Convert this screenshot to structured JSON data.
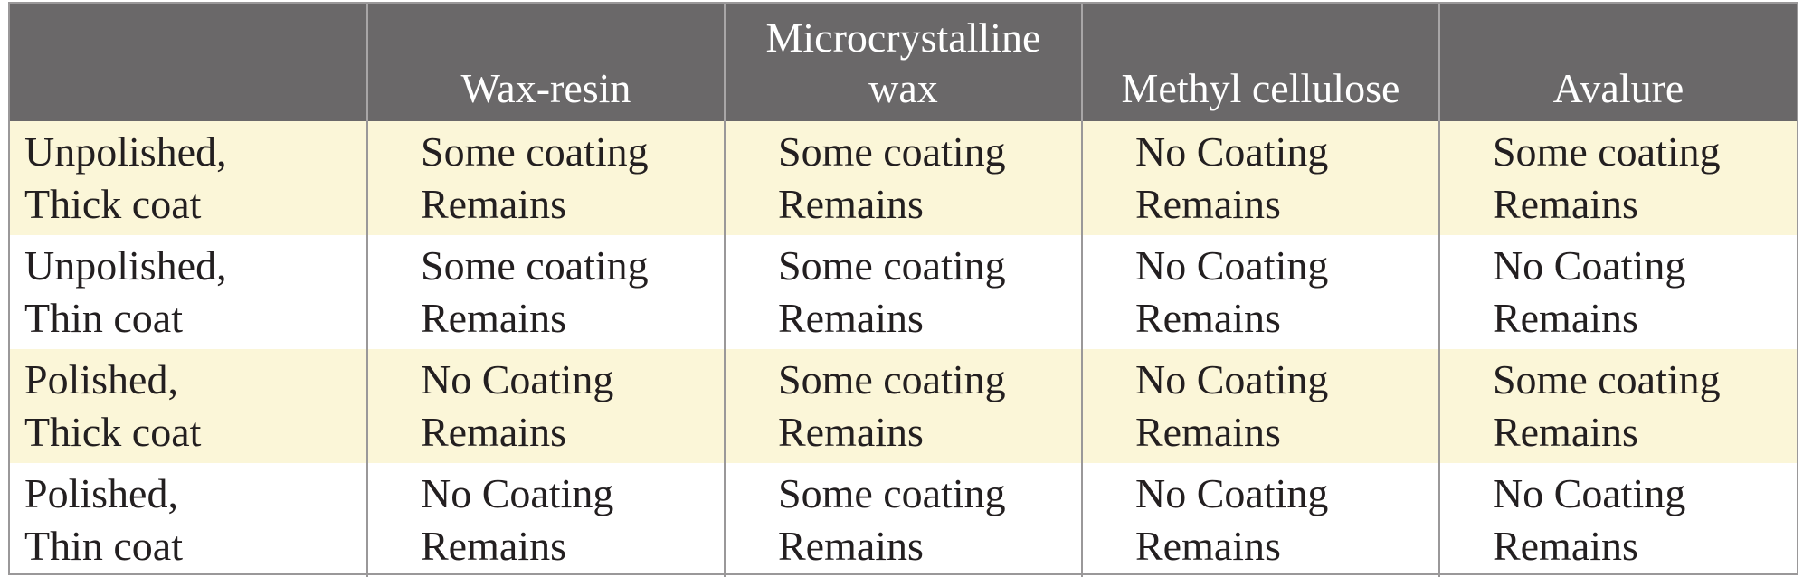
{
  "table": {
    "headers": [
      "",
      "Wax-resin",
      "Microcrystalline\nwax",
      "Methyl cellulose",
      "Avalure"
    ],
    "rows": [
      {
        "label": "Unpolished,\nThick coat",
        "cells": [
          "Some coating\nRemains",
          "Some coating\nRemains",
          "No Coating\nRemains",
          "Some coating\nRemains"
        ]
      },
      {
        "label": "Unpolished,\nThin coat",
        "cells": [
          "Some coating\nRemains",
          "Some coating\nRemains",
          "No Coating\nRemains",
          "No Coating\nRemains"
        ]
      },
      {
        "label": "Polished,\nThick coat",
        "cells": [
          "No Coating\nRemains",
          "Some coating\nRemains",
          "No Coating\nRemains",
          "Some coating\nRemains"
        ]
      },
      {
        "label": "Polished,\nThin coat",
        "cells": [
          "No Coating\nRemains",
          "Some coating\nRemains",
          "No Coating\nRemains",
          "No Coating\nRemains"
        ]
      }
    ]
  },
  "colors": {
    "header_bg": "#6a6869",
    "header_text": "#ffffff",
    "stripe_bg": "#fbf6d8",
    "body_text": "#231f20",
    "rule": "#9a9899"
  }
}
